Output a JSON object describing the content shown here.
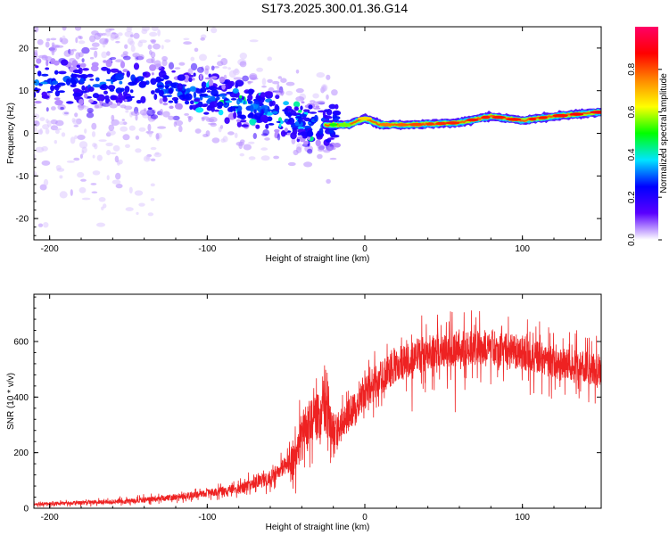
{
  "figure_title": "S173.2025.300.01.36.G14",
  "chart_data": [
    {
      "type": "heatmap",
      "title": "",
      "xlabel": "Height of straight line (km)",
      "ylabel": "Frequency (Hz)",
      "xlim": [
        -210,
        150
      ],
      "ylim": [
        -25,
        25
      ],
      "xticks": [
        -200,
        -100,
        0,
        100
      ],
      "yticks": [
        -20,
        -10,
        0,
        10,
        20
      ],
      "xtick_labels": [
        "-200",
        "-100",
        "0",
        "100"
      ],
      "ytick_labels": [
        "-20",
        "-10",
        "0",
        "10",
        "20"
      ],
      "colorbar": {
        "label": "Normalized spectral amplitude",
        "range": [
          0,
          1
        ],
        "ticks": [
          0.0,
          0.2,
          0.4,
          0.6,
          0.8
        ],
        "tick_labels": [
          "0.0",
          "0.2",
          "0.4",
          "0.6",
          "0.8"
        ],
        "colormap": [
          "#ffffff",
          "#5a00ff",
          "#0000ff",
          "#00e5ff",
          "#00ff00",
          "#ffff00",
          "#ff8800",
          "#ff0000",
          "#ff0066"
        ]
      },
      "ridge": {
        "description": "narrow high-amplitude frequency line",
        "x": [
          -25,
          -10,
          0,
          10,
          30,
          60,
          80,
          100,
          120,
          150
        ],
        "y": [
          2,
          2,
          3.5,
          2,
          2,
          2.5,
          4,
          3,
          4,
          5
        ],
        "amplitude": [
          0.5,
          0.6,
          0.7,
          0.8,
          0.85,
          0.9,
          0.9,
          0.9,
          0.9,
          0.95
        ]
      },
      "scatter_region": {
        "x_range": [
          -210,
          -25
        ],
        "center_freq": [
          12,
          10,
          8,
          5,
          2
        ],
        "center_x": [
          -160,
          -120,
          -90,
          -60,
          -35
        ]
      }
    },
    {
      "type": "line",
      "title": "",
      "xlabel": "Height of straight line (km)",
      "ylabel": "SNR (10 * v/v)",
      "xlim": [
        -210,
        150
      ],
      "ylim": [
        0,
        770
      ],
      "xticks": [
        -200,
        -100,
        0,
        100
      ],
      "yticks": [
        0,
        200,
        400,
        600
      ],
      "xtick_labels": [
        "-200",
        "-100",
        "0",
        "100"
      ],
      "ytick_labels": [
        "0",
        "200",
        "400",
        "600"
      ],
      "color": "#ee2222",
      "envelope": {
        "x": [
          -210,
          -150,
          -120,
          -80,
          -60,
          -45,
          -40,
          -30,
          -25,
          -20,
          -10,
          0,
          10,
          20,
          40,
          60,
          80,
          100,
          120,
          150
        ],
        "y": [
          15,
          25,
          40,
          70,
          110,
          180,
          260,
          330,
          350,
          260,
          340,
          410,
          470,
          520,
          560,
          575,
          580,
          560,
          520,
          500
        ]
      },
      "noise_amplitude": {
        "x": [
          -210,
          -100,
          -50,
          -40,
          -20,
          -10,
          20,
          150
        ],
        "y": [
          10,
          25,
          60,
          180,
          160,
          120,
          130,
          120
        ]
      }
    }
  ]
}
